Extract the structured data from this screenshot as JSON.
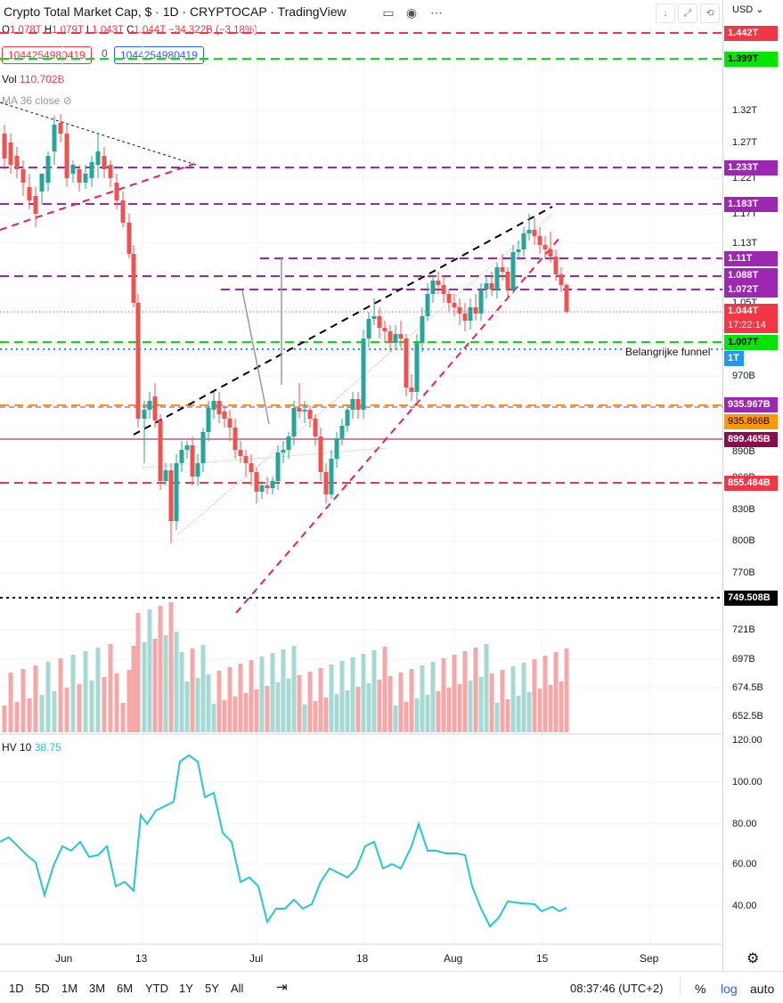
{
  "header": {
    "title": "Crypto Total Market Cap, $ · 1D · CRYPTOCAP · TradingView",
    "ohlc": {
      "o_label": "O",
      "o": "1.078T",
      "h_label": "H",
      "h": "1.079T",
      "l_label": "L",
      "l": "1.043T",
      "c_label": "C",
      "c": "1.044T",
      "change": "−34.322B (−3.18%)"
    },
    "sell_box": "1044254980419",
    "spread": "0",
    "buy_box": "1044254980419",
    "vol_label": "Vol",
    "vol_value": "110.702B",
    "ma_label": "MA 36 close",
    "currency": "USD"
  },
  "price_axis": {
    "ticks": [
      "1.32T",
      "1.27T",
      "1.22T",
      "1.17T",
      "1.13T",
      "1.05T",
      "970B",
      "890B",
      "860B",
      "830B",
      "800B",
      "770B",
      "721B",
      "697B",
      "674.5B",
      "652.5B"
    ],
    "tags": [
      {
        "text": "1.442T",
        "color": "#f23645"
      },
      {
        "text": "1.399T",
        "color": "#00e600"
      },
      {
        "text": "1.233T",
        "color": "#9c27b0"
      },
      {
        "text": "1.183T",
        "color": "#9c27b0"
      },
      {
        "text": "1.11T",
        "color": "#9c27b0"
      },
      {
        "text": "1.088T",
        "color": "#9c27b0"
      },
      {
        "text": "1.072T",
        "color": "#9c27b0"
      },
      {
        "text": "1.044T",
        "color": "#f23645"
      },
      {
        "text": "17:22:14",
        "color": "#f23645"
      },
      {
        "text": "1.007T",
        "color": "#00e600"
      },
      {
        "text": "1T",
        "color": "#2196f3"
      },
      {
        "text": "935.967B",
        "color": "#9c27b0"
      },
      {
        "text": "935.866B",
        "color": "#ff9800"
      },
      {
        "text": "899.465B",
        "color": "#880e4f"
      },
      {
        "text": "855.484B",
        "color": "#f23645"
      },
      {
        "text": "749.508B",
        "color": "#000000"
      }
    ]
  },
  "annotation": "Belangrijke funnel",
  "hv": {
    "label": "HV 10",
    "value": "38.75",
    "ticks": [
      "120.00",
      "100.00",
      "80.00",
      "60.00",
      "40.00"
    ]
  },
  "time_axis": [
    "Jun",
    "13",
    "Jul",
    "18",
    "Aug",
    "15",
    "Sep"
  ],
  "bottom": {
    "periods": [
      "1D",
      "5D",
      "1M",
      "3M",
      "6M",
      "YTD",
      "1Y",
      "5Y",
      "All"
    ],
    "clock": "08:37:46 (UTC+2)",
    "pct": "%",
    "log": "log",
    "auto": "auto"
  },
  "colors": {
    "up": "#26a69a",
    "down": "#ef5350",
    "up_vol": "#a6d9d3",
    "down_vol": "#f5a8a8",
    "hv_line": "#26c6da"
  }
}
